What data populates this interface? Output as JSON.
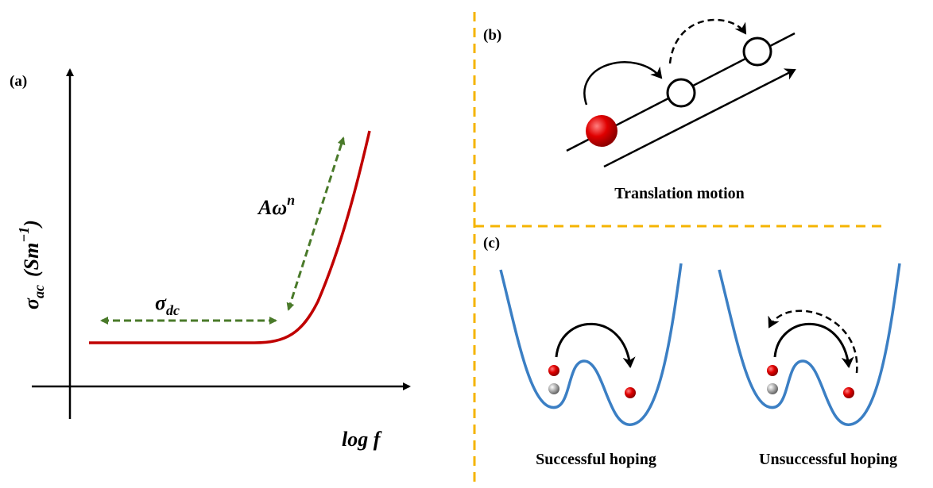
{
  "panel_a": {
    "label": "(a)",
    "y_axis": {
      "symbol": "σ",
      "subscript": "ac",
      "unit_open": "(Sm",
      "unit_exponent": "−1",
      "unit_close": ")"
    },
    "x_axis": "log f",
    "dc_label": {
      "symbol": "σ",
      "subscript": "dc"
    },
    "power_label": {
      "base": "Aω",
      "exponent": "n"
    }
  },
  "panel_b": {
    "label": "(b)",
    "caption": "Translation motion"
  },
  "panel_c": {
    "label": "(c)",
    "captions": [
      "Successful hoping",
      "Unsuccessful hoping"
    ]
  }
}
